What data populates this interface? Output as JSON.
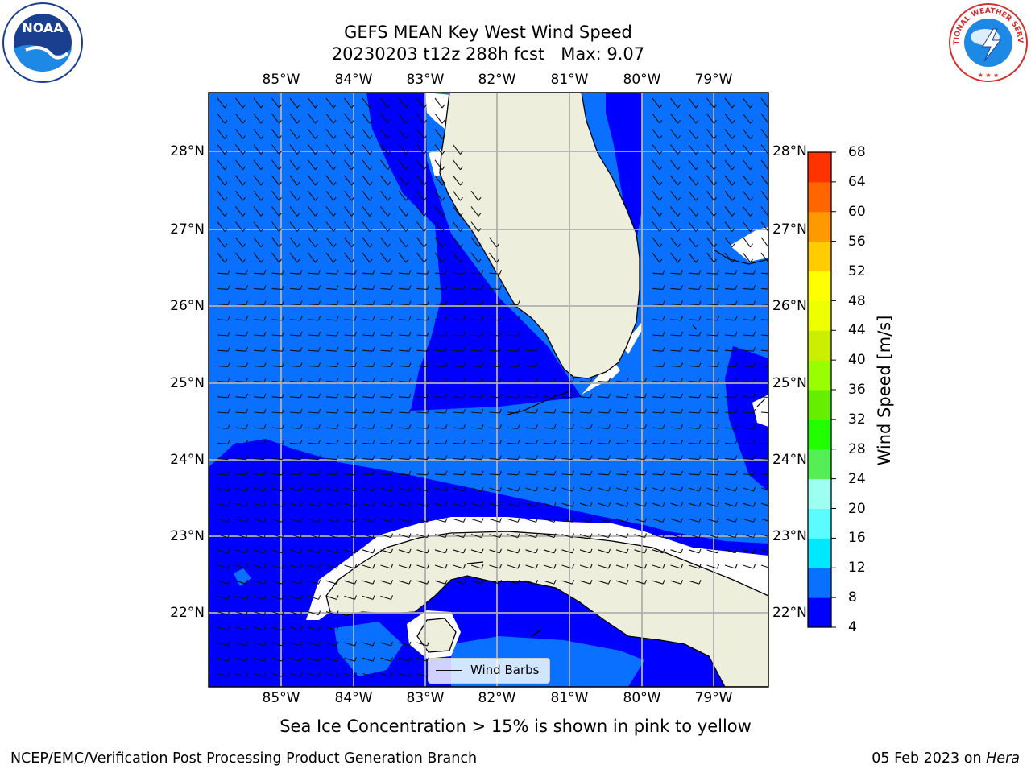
{
  "title": {
    "line1": "GEFS MEAN Key West Wind Speed",
    "line2": "20230203 t12z 288h fcst   Max: 9.07"
  },
  "logos": {
    "left": {
      "icon": "noaa-logo-icon",
      "text": "NOAA"
    },
    "right": {
      "icon": "nws-logo-icon",
      "text": "NATIONAL WEATHER SERVICE"
    }
  },
  "map": {
    "lon_labels": [
      "85°W",
      "84°W",
      "83°W",
      "82°W",
      "81°W",
      "80°W",
      "79°W"
    ],
    "lat_labels": [
      "28°N",
      "27°N",
      "26°N",
      "25°N",
      "24°N",
      "23°N",
      "22°N"
    ],
    "colors": {
      "land": "#eeeedd",
      "wind_4_8": "#0000ff",
      "wind_8_12": "#0a70ff",
      "gridline": "#b0b0b0",
      "barb": "#111111"
    }
  },
  "legend": {
    "label": "Wind Barbs"
  },
  "colorbar": {
    "label": "Wind Speed [m/s]",
    "ticks": [
      "68",
      "64",
      "60",
      "56",
      "52",
      "48",
      "44",
      "40",
      "36",
      "32",
      "28",
      "24",
      "20",
      "16",
      "12",
      "8",
      "4"
    ],
    "colors_low_to_high": [
      "#0000ff",
      "#0a70ff",
      "#00e8ff",
      "#5cfbff",
      "#9cfff0",
      "#55ee55",
      "#22ff00",
      "#66ee00",
      "#99ff00",
      "#ccee00",
      "#eeff00",
      "#ffff00",
      "#ffcc00",
      "#ff9900",
      "#ff6600",
      "#ff3300",
      "#ff0000"
    ]
  },
  "footer": {
    "note": "Sea Ice Concentration > 15% is shown in pink to yellow",
    "credit": "NCEP/EMC/Verification Post Processing Product Generation Branch",
    "date": "05 Feb 2023 on",
    "machine": "Hera"
  }
}
